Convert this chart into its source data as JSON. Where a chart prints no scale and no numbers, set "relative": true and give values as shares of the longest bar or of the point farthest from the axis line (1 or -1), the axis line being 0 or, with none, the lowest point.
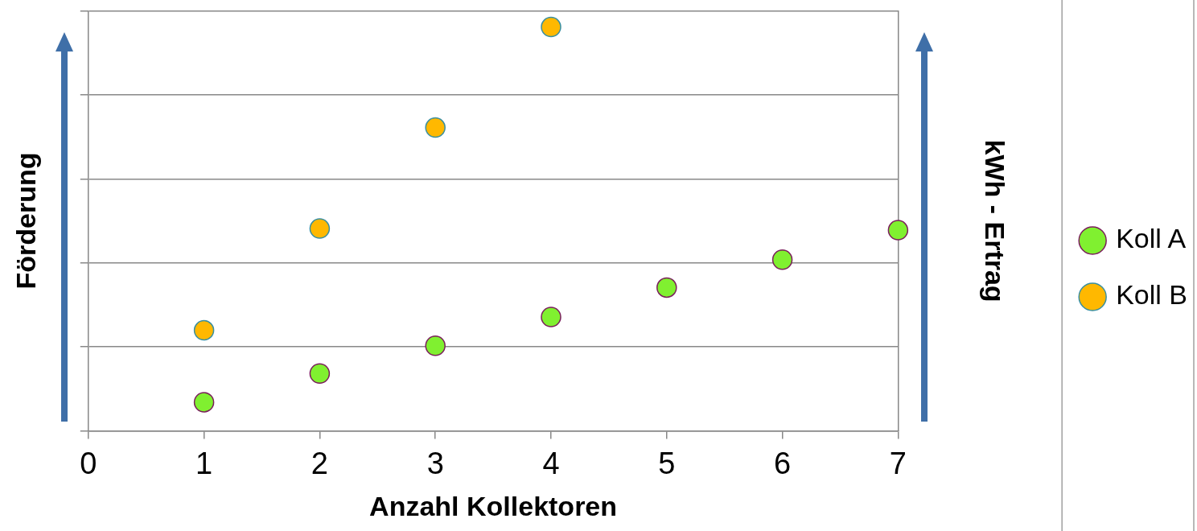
{
  "chart_data": {
    "type": "scatter",
    "xlabel": "Anzahl Kollektoren",
    "ylabel": "Förderung",
    "y2label": "kWh - Ertrag",
    "relative": true,
    "xlim": [
      0,
      7
    ],
    "xticks": [
      0,
      1,
      2,
      3,
      4,
      5,
      6,
      7
    ],
    "grid": "y",
    "legend": "right",
    "marker": "circle",
    "series": [
      {
        "name": "Koll A",
        "color": "#80f030",
        "x": [
          1,
          2,
          3,
          4,
          5,
          6,
          7
        ],
        "values": [
          0.071,
          0.142,
          0.211,
          0.282,
          0.355,
          0.424,
          0.497
        ]
      },
      {
        "name": "Koll B",
        "color": "#ffb800",
        "x": [
          1,
          2,
          3,
          4
        ],
        "values": [
          0.249,
          0.501,
          0.751,
          1
        ]
      }
    ]
  }
}
